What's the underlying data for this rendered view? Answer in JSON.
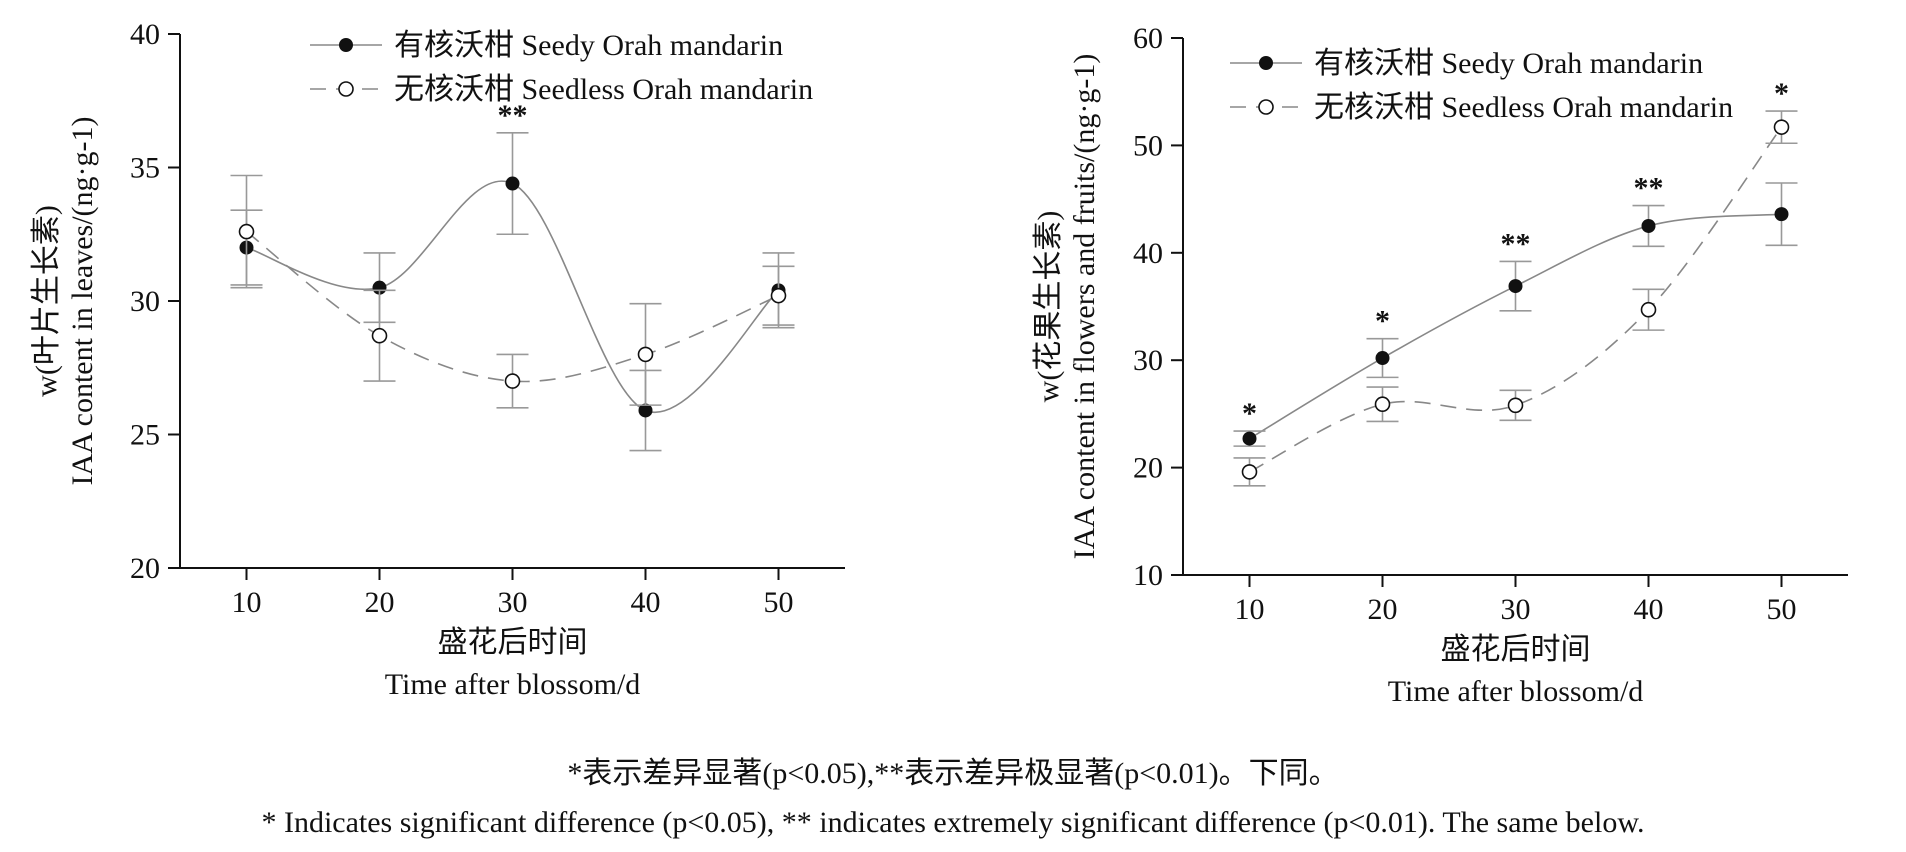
{
  "chart_data": [
    {
      "type": "line",
      "ylabel_line1": "w(叶片生长素)",
      "ylabel_line2": "IAA content in leaves/(ng·g-1)",
      "xlabel_line1": "盛花后时间",
      "xlabel_line2": "Time after blossom/d",
      "x": [
        10,
        20,
        30,
        40,
        50
      ],
      "xlim": [
        5,
        55
      ],
      "ylim": [
        20,
        40
      ],
      "yticks": [
        20,
        25,
        30,
        35,
        40
      ],
      "legend_position": "top",
      "series": [
        {
          "name": "有核沃柑 Seedy Orah mandarin",
          "marker": "filled",
          "line": "solid",
          "values": [
            32.0,
            30.5,
            34.4,
            25.9,
            30.4
          ],
          "errors": [
            1.4,
            1.3,
            1.9,
            1.5,
            1.4
          ]
        },
        {
          "name": "无核沃柑 Seedless Orah mandarin",
          "marker": "open",
          "line": "dashed",
          "values": [
            32.6,
            28.7,
            27.0,
            28.0,
            30.2
          ],
          "errors": [
            2.1,
            1.7,
            1.0,
            1.9,
            1.1
          ]
        }
      ],
      "significance": [
        "",
        "",
        "**",
        "",
        ""
      ]
    },
    {
      "type": "line",
      "ylabel_line1": "w(花果生长素)",
      "ylabel_line2": "IAA content in flowers and fruits/(ng·g-1)",
      "xlabel_line1": "盛花后时间",
      "xlabel_line2": "Time after blossom/d",
      "x": [
        10,
        20,
        30,
        40,
        50
      ],
      "xlim": [
        5,
        55
      ],
      "ylim": [
        10,
        60
      ],
      "yticks": [
        10,
        20,
        30,
        40,
        50,
        60
      ],
      "legend_position": "top",
      "series": [
        {
          "name": "有核沃柑 Seedy Orah mandarin",
          "marker": "filled",
          "line": "solid",
          "values": [
            22.7,
            30.2,
            36.9,
            42.5,
            43.6
          ],
          "errors": [
            0.7,
            1.8,
            2.3,
            1.9,
            2.9
          ]
        },
        {
          "name": "无核沃柑 Seedless Orah mandarin",
          "marker": "open",
          "line": "dashed",
          "values": [
            19.6,
            25.9,
            25.8,
            34.7,
            51.7
          ],
          "errors": [
            1.3,
            1.6,
            1.4,
            1.9,
            1.5
          ]
        }
      ],
      "significance": [
        "*",
        "*",
        "**",
        "**",
        "*"
      ]
    }
  ],
  "captions": {
    "zh": "*表示差异显著(p<0.05),**表示差异极显著(p<0.01)。下同。",
    "en": "* Indicates significant difference (p<0.05), ** indicates extremely significant difference (p<0.01). The same below."
  },
  "colors": {
    "line": "#888888",
    "marker": "#111111",
    "axis": "#111111",
    "errorbar": "#999999"
  }
}
